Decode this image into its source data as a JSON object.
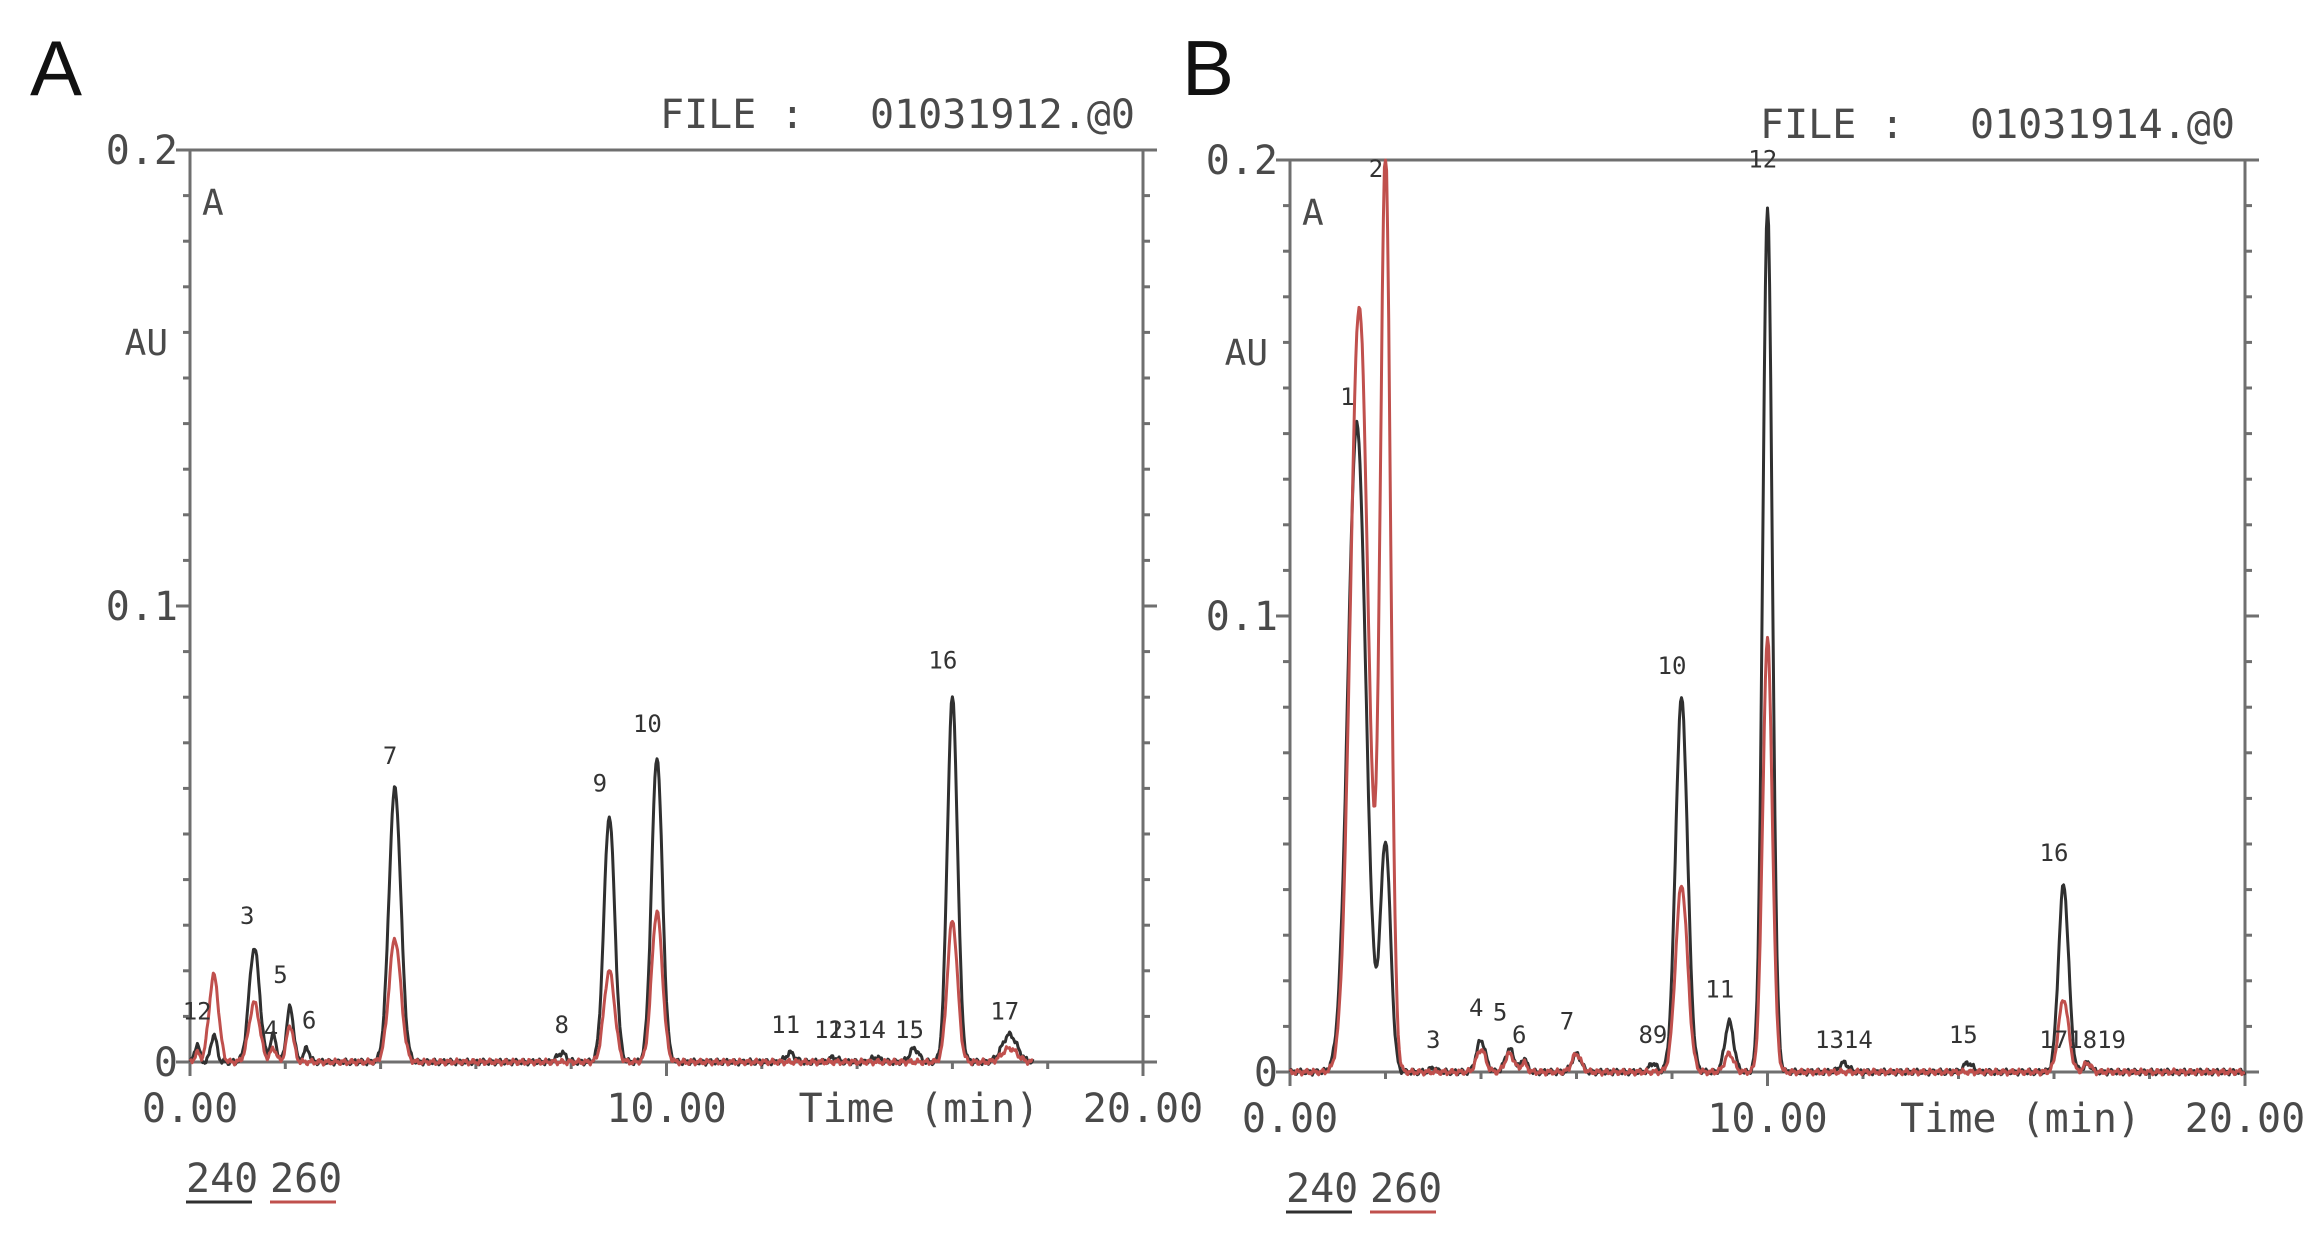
{
  "colors": {
    "trace_240": "#303030",
    "trace_260": "#c0504d",
    "frame": "#6f6f6f"
  },
  "chart_data": [
    {
      "panel": "A",
      "type": "line",
      "file_label": "FILE :",
      "file_name": "01031912.@0",
      "channel_label": "A",
      "ylabel": "AU",
      "xlabel": "Time (min)",
      "xlim": [
        0,
        20
      ],
      "ylim": [
        0,
        0.2
      ],
      "x_tick_labels": [
        "0.00",
        "10.00",
        "20.00"
      ],
      "y_tick_labels": [
        "0",
        "0.1",
        "0.2"
      ],
      "legend": [
        "240",
        "260"
      ],
      "series": [
        {
          "name": "240",
          "peaks": [
            [
              0.15,
              0.004,
              0.08
            ],
            [
              0.5,
              0.006,
              0.1
            ],
            [
              1.35,
              0.025,
              0.18
            ],
            [
              1.75,
              0.006,
              0.1
            ],
            [
              2.1,
              0.012,
              0.12
            ],
            [
              2.45,
              0.003,
              0.1
            ],
            [
              4.3,
              0.06,
              0.2
            ],
            [
              7.8,
              0.002,
              0.15
            ],
            [
              8.8,
              0.054,
              0.18
            ],
            [
              9.8,
              0.067,
              0.18
            ],
            [
              12.6,
              0.002,
              0.15
            ],
            [
              13.5,
              0.001,
              0.15
            ],
            [
              14.4,
              0.001,
              0.15
            ],
            [
              15.2,
              0.003,
              0.15
            ],
            [
              16.0,
              0.08,
              0.17
            ],
            [
              17.2,
              0.006,
              0.25
            ]
          ]
        },
        {
          "name": "260",
          "peaks": [
            [
              0.15,
              0.002,
              0.08
            ],
            [
              0.5,
              0.019,
              0.16
            ],
            [
              1.35,
              0.013,
              0.18
            ],
            [
              1.75,
              0.003,
              0.1
            ],
            [
              2.1,
              0.008,
              0.12
            ],
            [
              4.3,
              0.027,
              0.2
            ],
            [
              8.8,
              0.02,
              0.18
            ],
            [
              9.8,
              0.033,
              0.18
            ],
            [
              16.0,
              0.031,
              0.17
            ],
            [
              17.2,
              0.003,
              0.25
            ]
          ]
        }
      ],
      "peak_labels": [
        {
          "text": "1",
          "x": 0.0,
          "y": 0.008
        },
        {
          "text": "2",
          "x": 0.3,
          "y": 0.008
        },
        {
          "text": "3",
          "x": 1.2,
          "y": 0.029
        },
        {
          "text": "4",
          "x": 1.7,
          "y": 0.004
        },
        {
          "text": "5",
          "x": 1.9,
          "y": 0.016
        },
        {
          "text": "6",
          "x": 2.5,
          "y": 0.006
        },
        {
          "text": "7",
          "x": 4.2,
          "y": 0.064
        },
        {
          "text": "8",
          "x": 7.8,
          "y": 0.005
        },
        {
          "text": "9",
          "x": 8.6,
          "y": 0.058
        },
        {
          "text": "10",
          "x": 9.6,
          "y": 0.071
        },
        {
          "text": "11",
          "x": 12.5,
          "y": 0.005
        },
        {
          "text": "12",
          "x": 13.4,
          "y": 0.004
        },
        {
          "text": "1314",
          "x": 14.0,
          "y": 0.004
        },
        {
          "text": "15",
          "x": 15.1,
          "y": 0.004
        },
        {
          "text": "16",
          "x": 15.8,
          "y": 0.085
        },
        {
          "text": "17",
          "x": 17.1,
          "y": 0.008
        }
      ]
    },
    {
      "panel": "B",
      "type": "line",
      "file_label": "FILE :",
      "file_name": "01031914.@0",
      "channel_label": "A",
      "ylabel": "AU",
      "xlabel": "Time (min)",
      "xlim": [
        0,
        20
      ],
      "ylim": [
        0,
        0.2
      ],
      "x_tick_labels": [
        "0.00",
        "10.00",
        "20.00"
      ],
      "y_tick_labels": [
        "0",
        "0.1",
        "0.2"
      ],
      "legend": [
        "240",
        "260"
      ],
      "series": [
        {
          "name": "240",
          "peaks": [
            [
              1.4,
              0.142,
              0.3
            ],
            [
              2.0,
              0.05,
              0.17
            ],
            [
              3.0,
              0.001,
              0.1
            ],
            [
              4.0,
              0.007,
              0.15
            ],
            [
              4.6,
              0.005,
              0.15
            ],
            [
              4.9,
              0.003,
              0.1
            ],
            [
              6.0,
              0.004,
              0.15
            ],
            [
              7.6,
              0.002,
              0.12
            ],
            [
              8.2,
              0.082,
              0.2
            ],
            [
              9.2,
              0.011,
              0.15
            ],
            [
              10.0,
              0.19,
              0.16
            ],
            [
              11.6,
              0.002,
              0.15
            ],
            [
              14.2,
              0.002,
              0.15
            ],
            [
              16.2,
              0.041,
              0.17
            ],
            [
              16.7,
              0.002,
              0.12
            ]
          ]
        },
        {
          "name": "260",
          "peaks": [
            [
              1.45,
              0.168,
              0.3
            ],
            [
              2.0,
              0.2,
              0.17
            ],
            [
              4.0,
              0.005,
              0.15
            ],
            [
              4.6,
              0.004,
              0.15
            ],
            [
              4.9,
              0.002,
              0.1
            ],
            [
              6.0,
              0.004,
              0.15
            ],
            [
              8.2,
              0.041,
              0.2
            ],
            [
              9.2,
              0.004,
              0.15
            ],
            [
              10.0,
              0.095,
              0.16
            ],
            [
              16.2,
              0.016,
              0.17
            ],
            [
              16.7,
              0.002,
              0.12
            ]
          ]
        }
      ],
      "peak_labels": [
        {
          "text": "1",
          "x": 1.2,
          "y": 0.145
        },
        {
          "text": "2",
          "x": 1.8,
          "y": 0.195
        },
        {
          "text": "3",
          "x": 3.0,
          "y": 0.004
        },
        {
          "text": "4",
          "x": 3.9,
          "y": 0.011
        },
        {
          "text": "5",
          "x": 4.4,
          "y": 0.01
        },
        {
          "text": "6",
          "x": 4.8,
          "y": 0.005
        },
        {
          "text": "7",
          "x": 5.8,
          "y": 0.008
        },
        {
          "text": "89",
          "x": 7.6,
          "y": 0.005
        },
        {
          "text": "10",
          "x": 8.0,
          "y": 0.086
        },
        {
          "text": "11",
          "x": 9.0,
          "y": 0.015
        },
        {
          "text": "12",
          "x": 9.9,
          "y": 0.197
        },
        {
          "text": "1314",
          "x": 11.6,
          "y": 0.004
        },
        {
          "text": "15",
          "x": 14.1,
          "y": 0.005
        },
        {
          "text": "16",
          "x": 16.0,
          "y": 0.045
        },
        {
          "text": "171819",
          "x": 16.6,
          "y": 0.004
        }
      ]
    }
  ]
}
